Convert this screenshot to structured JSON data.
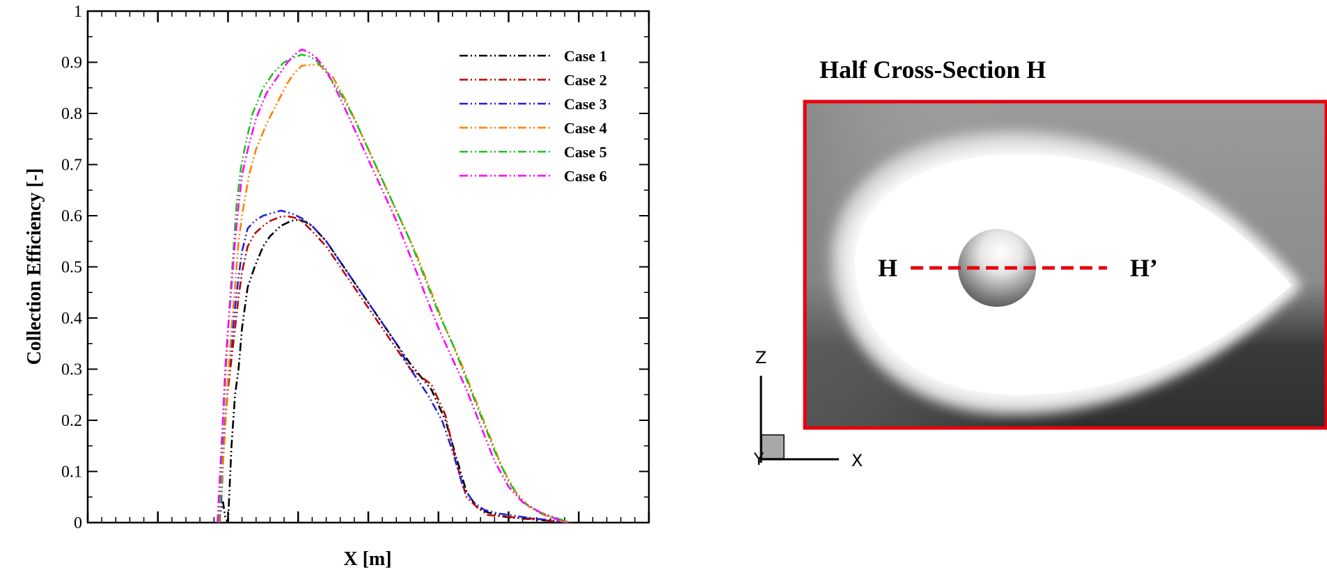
{
  "chart_data": {
    "type": "line",
    "title": "",
    "xlabel": "X [m]",
    "ylabel": "Collection Efficiency [-]",
    "ylim": [
      0,
      1
    ],
    "xlim": [
      0,
      8
    ],
    "x_ticks_unlabeled": true,
    "grid": false,
    "legend_position": "top-right",
    "y_ticks": [
      "0",
      "0.1",
      "0.2",
      "0.3",
      "0.4",
      "0.5",
      "0.6",
      "0.7",
      "0.8",
      "0.9",
      "1"
    ],
    "series": [
      {
        "name": "Case 1",
        "color": "#000000",
        "x": [
          1.86,
          1.89,
          1.93,
          1.96,
          2.0,
          2.05,
          2.1,
          2.15,
          2.2,
          2.28,
          2.38,
          2.5,
          2.6,
          2.75,
          2.9,
          3.0,
          3.1,
          3.2,
          3.4,
          3.6,
          3.8,
          4.0,
          4.2,
          4.4,
          4.6,
          4.9,
          5.1,
          5.25,
          5.4,
          5.55,
          5.7,
          5.9,
          6.0,
          6.2,
          6.4,
          6.6,
          6.8
        ],
        "y": [
          0.0,
          0.02,
          0.04,
          0.01,
          0.0,
          0.15,
          0.25,
          0.3,
          0.38,
          0.46,
          0.5,
          0.54,
          0.56,
          0.58,
          0.59,
          0.592,
          0.588,
          0.58,
          0.55,
          0.51,
          0.47,
          0.43,
          0.39,
          0.35,
          0.31,
          0.26,
          0.2,
          0.13,
          0.06,
          0.03,
          0.02,
          0.013,
          0.01,
          0.008,
          0.006,
          0.003,
          0.0
        ]
      },
      {
        "name": "Case 2",
        "color": "#c00000",
        "x": [
          1.88,
          1.92,
          1.96,
          2.0,
          2.05,
          2.1,
          2.15,
          2.2,
          2.28,
          2.38,
          2.5,
          2.6,
          2.75,
          2.85,
          2.95,
          3.05,
          3.2,
          3.4,
          3.6,
          3.8,
          4.0,
          4.2,
          4.4,
          4.6,
          4.9,
          5.1,
          5.25,
          5.4,
          5.55,
          5.7,
          5.9,
          6.1,
          6.3,
          6.5,
          6.75
        ],
        "y": [
          0.0,
          0.1,
          0.2,
          0.26,
          0.32,
          0.38,
          0.44,
          0.49,
          0.54,
          0.565,
          0.58,
          0.59,
          0.598,
          0.599,
          0.596,
          0.59,
          0.57,
          0.54,
          0.5,
          0.46,
          0.42,
          0.38,
          0.34,
          0.3,
          0.27,
          0.21,
          0.12,
          0.05,
          0.03,
          0.015,
          0.012,
          0.01,
          0.008,
          0.005,
          0.0
        ]
      },
      {
        "name": "Case 3",
        "color": "#2020e0",
        "x": [
          1.87,
          1.9,
          1.93,
          1.97,
          2.0,
          2.05,
          2.1,
          2.15,
          2.2,
          2.28,
          2.38,
          2.5,
          2.6,
          2.75,
          2.85,
          2.95,
          3.05,
          3.2,
          3.4,
          3.6,
          3.8,
          4.0,
          4.2,
          4.4,
          4.6,
          4.85,
          5.05,
          5.2,
          5.35,
          5.5,
          5.65,
          5.85,
          6.05,
          6.25,
          6.45,
          6.7,
          6.85
        ],
        "y": [
          0.0,
          0.03,
          0.12,
          0.22,
          0.28,
          0.35,
          0.42,
          0.48,
          0.53,
          0.575,
          0.59,
          0.6,
          0.604,
          0.61,
          0.607,
          0.602,
          0.595,
          0.58,
          0.55,
          0.51,
          0.47,
          0.43,
          0.39,
          0.35,
          0.3,
          0.25,
          0.2,
          0.14,
          0.07,
          0.04,
          0.025,
          0.018,
          0.014,
          0.01,
          0.007,
          0.003,
          0.0
        ]
      },
      {
        "name": "Case 4",
        "color": "#ff8000",
        "x": [
          1.87,
          1.9,
          1.95,
          2.0,
          2.05,
          2.1,
          2.15,
          2.2,
          2.3,
          2.4,
          2.55,
          2.7,
          2.85,
          2.95,
          3.05,
          3.15,
          3.3,
          3.5,
          3.7,
          3.9,
          4.1,
          4.3,
          4.5,
          4.7,
          4.9,
          5.1,
          5.3,
          5.5,
          5.7,
          5.9,
          6.1,
          6.3,
          6.5,
          6.7,
          6.85
        ],
        "y": [
          0.0,
          0.06,
          0.16,
          0.28,
          0.38,
          0.46,
          0.55,
          0.6,
          0.68,
          0.73,
          0.78,
          0.82,
          0.86,
          0.88,
          0.893,
          0.895,
          0.895,
          0.87,
          0.82,
          0.76,
          0.7,
          0.64,
          0.58,
          0.52,
          0.45,
          0.38,
          0.32,
          0.25,
          0.18,
          0.11,
          0.06,
          0.03,
          0.015,
          0.005,
          0.0
        ]
      },
      {
        "name": "Case 5",
        "color": "#20c020",
        "x": [
          1.86,
          1.89,
          1.93,
          1.97,
          2.02,
          2.07,
          2.12,
          2.18,
          2.25,
          2.35,
          2.5,
          2.65,
          2.8,
          2.95,
          3.05,
          3.15,
          3.25,
          3.4,
          3.6,
          3.8,
          4.0,
          4.2,
          4.4,
          4.6,
          4.8,
          5.0,
          5.2,
          5.4,
          5.6,
          5.8,
          6.0,
          6.2,
          6.45,
          6.7,
          6.88
        ],
        "y": [
          0.0,
          0.05,
          0.2,
          0.3,
          0.42,
          0.52,
          0.62,
          0.69,
          0.74,
          0.8,
          0.85,
          0.88,
          0.9,
          0.91,
          0.915,
          0.912,
          0.905,
          0.88,
          0.84,
          0.79,
          0.73,
          0.67,
          0.61,
          0.55,
          0.48,
          0.41,
          0.35,
          0.28,
          0.21,
          0.14,
          0.08,
          0.04,
          0.02,
          0.008,
          0.0
        ]
      },
      {
        "name": "Case 6",
        "color": "#ff00ff",
        "x": [
          1.85,
          1.88,
          1.92,
          1.96,
          2.0,
          2.05,
          2.1,
          2.15,
          2.2,
          2.3,
          2.4,
          2.55,
          2.7,
          2.85,
          2.95,
          3.05,
          3.15,
          3.25,
          3.4,
          3.6,
          3.8,
          4.0,
          4.2,
          4.4,
          4.6,
          4.8,
          5.0,
          5.2,
          5.4,
          5.6,
          5.8,
          6.0,
          6.2,
          6.45,
          6.7,
          6.85
        ],
        "y": [
          0.0,
          0.08,
          0.18,
          0.3,
          0.38,
          0.46,
          0.55,
          0.62,
          0.68,
          0.74,
          0.79,
          0.84,
          0.87,
          0.9,
          0.915,
          0.925,
          0.92,
          0.91,
          0.885,
          0.83,
          0.77,
          0.71,
          0.65,
          0.59,
          0.52,
          0.45,
          0.38,
          0.32,
          0.26,
          0.19,
          0.12,
          0.07,
          0.04,
          0.02,
          0.006,
          0.0
        ]
      }
    ]
  },
  "panel": {
    "title": "Half Cross-Section H",
    "label_left": "H",
    "label_right": "H’",
    "border_color": "#e8000b",
    "line_color": "#e8000b",
    "triad": {
      "z": "Z",
      "y": "Y",
      "x": "X"
    }
  }
}
